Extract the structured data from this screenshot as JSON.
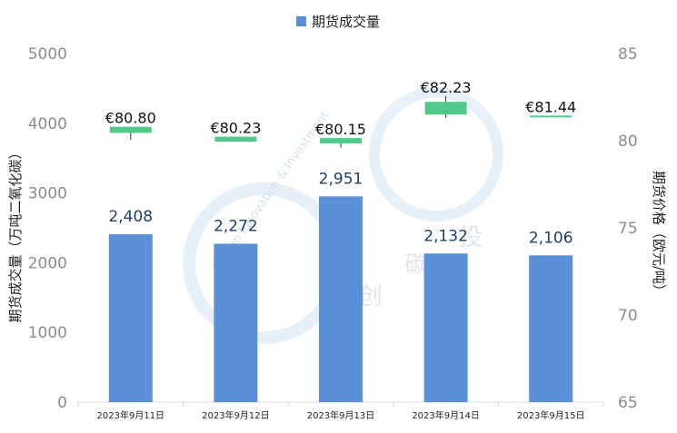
{
  "chart_data": {
    "type": "bar",
    "legend": {
      "label": "期货成交量",
      "color": "#5b8fd6",
      "placement": "top-center"
    },
    "categories": [
      "2023年9月11日",
      "2023年9月12日",
      "2023年9月13日",
      "2023年9月14日",
      "2023年9月15日"
    ],
    "series": [
      {
        "name": "期货成交量",
        "type": "bar",
        "axis": "left",
        "color": "#5b8fd6",
        "values": [
          2408,
          2272,
          2951,
          2132,
          2106
        ],
        "labels": [
          "2,408",
          "2,272",
          "2,951",
          "2,132",
          "2,106"
        ]
      },
      {
        "type": "candlestick",
        "axis": "right",
        "color": "#52c98a",
        "close": [
          80.8,
          80.23,
          80.15,
          82.23,
          81.44
        ],
        "labels": [
          "€80.80",
          "€80.23",
          "€80.15",
          "€82.23",
          "€81.44"
        ],
        "ohlc": [
          {
            "open": 80.45,
            "close": 80.8,
            "high": 80.8,
            "low": 80.05
          },
          {
            "open": 79.95,
            "close": 80.23,
            "high": 80.23,
            "low": 79.95
          },
          {
            "open": 79.85,
            "close": 80.15,
            "high": 80.15,
            "low": 79.6
          },
          {
            "open": 81.5,
            "close": 82.23,
            "high": 82.55,
            "low": 81.3
          },
          {
            "open": 81.4,
            "close": 81.44,
            "high": 81.44,
            "low": 81.4
          }
        ]
      }
    ],
    "y_left": {
      "label": "期货成交量（万吨二氧化碳）",
      "ylim": [
        0,
        5000
      ],
      "ticks": [
        0,
        1000,
        2000,
        3000,
        4000,
        5000
      ]
    },
    "y_right": {
      "label": "期货价格（欧元/吨）",
      "ylim": [
        65,
        85
      ],
      "ticks": [
        65,
        70,
        75,
        80,
        85
      ]
    },
    "grid": false
  },
  "watermark": {
    "text_ring": "Carbon Innovation & Investment",
    "text_cn": [
      "创",
      "碳",
      "投"
    ]
  }
}
